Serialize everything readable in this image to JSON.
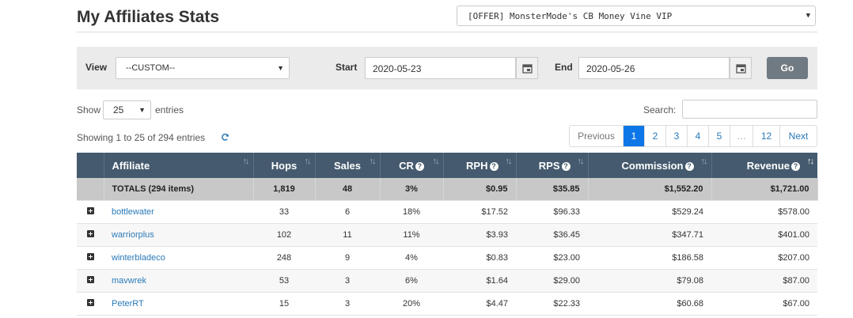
{
  "header": {
    "title": "My Affiliates Stats",
    "offer_selected": "[OFFER] MonsterMode's CB Money Vine VIP"
  },
  "filters": {
    "view_label": "View",
    "view_value": "--CUSTOM--",
    "start_label": "Start",
    "start_value": "2020-05-23",
    "end_label": "End",
    "end_value": "2020-05-26",
    "go_label": "Go"
  },
  "entries": {
    "show_label": "Show",
    "page_size": "25",
    "entries_label": "entries",
    "search_label": "Search:",
    "search_value": "",
    "info": "Showing 1 to 25 of 294 entries"
  },
  "pagination": {
    "previous": "Previous",
    "pages": [
      "1",
      "2",
      "3",
      "4",
      "5",
      "…",
      "12"
    ],
    "active_page": "1",
    "next": "Next"
  },
  "table": {
    "columns": [
      "Affiliate",
      "Hops",
      "Sales",
      "CR",
      "RPH",
      "RPS",
      "Commission",
      "Revenue"
    ],
    "totals": {
      "label": "TOTALS (294 items)",
      "hops": "1,819",
      "sales": "48",
      "cr": "3%",
      "rph": "$0.95",
      "rps": "$35.85",
      "commission": "$1,552.20",
      "revenue": "$1,721.00"
    },
    "rows": [
      {
        "affiliate": "bottlewater",
        "hops": "33",
        "sales": "6",
        "cr": "18%",
        "rph": "$17.52",
        "rps": "$96.33",
        "commission": "$529.24",
        "revenue": "$578.00"
      },
      {
        "affiliate": "warriorplus",
        "hops": "102",
        "sales": "11",
        "cr": "11%",
        "rph": "$3.93",
        "rps": "$36.45",
        "commission": "$347.71",
        "revenue": "$401.00"
      },
      {
        "affiliate": "winterbladeco",
        "hops": "248",
        "sales": "9",
        "cr": "4%",
        "rph": "$0.83",
        "rps": "$23.00",
        "commission": "$186.58",
        "revenue": "$207.00"
      },
      {
        "affiliate": "mavwrek",
        "hops": "53",
        "sales": "3",
        "cr": "6%",
        "rph": "$1.64",
        "rps": "$29.00",
        "commission": "$79.08",
        "revenue": "$87.00"
      },
      {
        "affiliate": "PeterRT",
        "hops": "15",
        "sales": "3",
        "cr": "20%",
        "rph": "$4.47",
        "rps": "$22.33",
        "commission": "$60.68",
        "revenue": "$67.00"
      }
    ]
  },
  "colors": {
    "header_bg": "#455a6e",
    "totals_bg": "#c8c8c8",
    "link": "#2a7ab8",
    "active_page": "#0d77e8",
    "go_button": "#707a82"
  }
}
